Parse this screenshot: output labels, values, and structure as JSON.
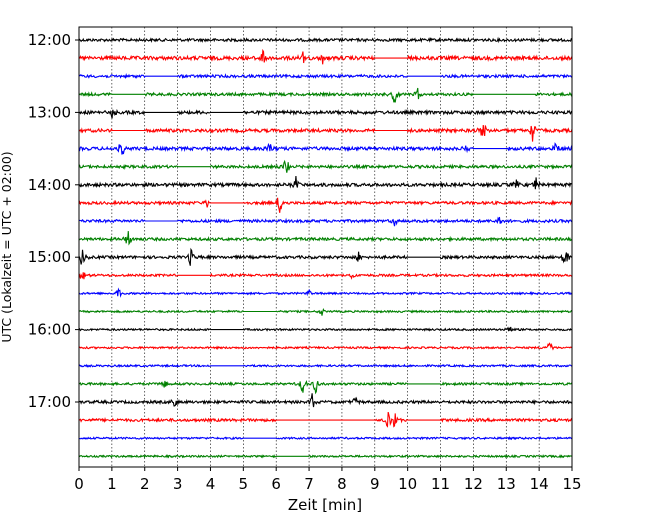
{
  "chart_data": {
    "type": "line",
    "title": "",
    "xlabel": "Zeit  [min]",
    "ylabel": "UTC (Lokalzeit = UTC + 02:00)",
    "xlim": [
      0,
      15
    ],
    "x_ticks": [
      "0",
      "1",
      "2",
      "3",
      "4",
      "5",
      "6",
      "7",
      "8",
      "9",
      "10",
      "11",
      "12",
      "13",
      "14",
      "15"
    ],
    "y_tick_labels": [
      "12:00",
      "13:00",
      "14:00",
      "15:00",
      "16:00",
      "17:00"
    ],
    "trace_interval_min": 15,
    "trace_start": "12:00",
    "trace_colors": [
      "#000000",
      "#ff0000",
      "#0000ff",
      "#008000"
    ],
    "grid_x": true,
    "traces": [
      {
        "start": "12:00",
        "color": "#000000",
        "noise": 0.3,
        "gaps": [],
        "events": []
      },
      {
        "start": "12:15",
        "color": "#ff0000",
        "noise": 0.4,
        "gaps": [
          [
            9.0,
            10.0
          ]
        ],
        "events": [
          [
            5.6,
            0.8
          ],
          [
            6.8,
            0.8
          ],
          [
            7.4,
            0.7
          ]
        ]
      },
      {
        "start": "12:30",
        "color": "#0000ff",
        "noise": 0.3,
        "gaps": [
          [
            2.0,
            3.0
          ],
          [
            10.0,
            11.0
          ]
        ],
        "events": []
      },
      {
        "start": "12:45",
        "color": "#008000",
        "noise": 0.3,
        "gaps": [
          [
            1.0,
            2.0
          ],
          [
            12.0,
            13.9
          ]
        ],
        "events": [
          [
            9.6,
            1.0
          ],
          [
            10.3,
            0.7
          ]
        ]
      },
      {
        "start": "13:00",
        "color": "#000000",
        "noise": 0.35,
        "gaps": [
          [
            2.0,
            3.0
          ],
          [
            4.0,
            5.0
          ]
        ],
        "events": [
          [
            1.0,
            0.6
          ]
        ]
      },
      {
        "start": "13:15",
        "color": "#ff0000",
        "noise": 0.35,
        "gaps": [
          [
            1.0,
            2.0
          ],
          [
            9.0,
            10.0
          ]
        ],
        "events": [
          [
            12.3,
            1.4
          ],
          [
            13.8,
            1.1
          ]
        ]
      },
      {
        "start": "13:30",
        "color": "#0000ff",
        "noise": 0.35,
        "gaps": [
          [
            12.0,
            13.0
          ]
        ],
        "events": [
          [
            1.3,
            0.9
          ],
          [
            5.8,
            0.7
          ],
          [
            11.8,
            0.7
          ],
          [
            14.5,
            0.6
          ]
        ]
      },
      {
        "start": "13:45",
        "color": "#008000",
        "noise": 0.3,
        "gaps": [
          [
            3.0,
            4.0
          ]
        ],
        "events": [
          [
            6.3,
            1.3
          ]
        ]
      },
      {
        "start": "14:00",
        "color": "#000000",
        "noise": 0.35,
        "gaps": [],
        "events": [
          [
            6.6,
            1.0
          ],
          [
            13.3,
            0.7
          ],
          [
            13.9,
            0.9
          ]
        ]
      },
      {
        "start": "14:15",
        "color": "#ff0000",
        "noise": 0.3,
        "gaps": [
          [
            4.0,
            5.0
          ]
        ],
        "events": [
          [
            6.1,
            1.1
          ],
          [
            3.9,
            0.5
          ]
        ]
      },
      {
        "start": "14:30",
        "color": "#0000ff",
        "noise": 0.3,
        "gaps": [
          [
            2.0,
            3.0
          ]
        ],
        "events": [
          [
            9.6,
            0.6
          ],
          [
            12.8,
            0.8
          ]
        ]
      },
      {
        "start": "14:45",
        "color": "#008000",
        "noise": 0.3,
        "gaps": [],
        "events": [
          [
            1.5,
            1.1
          ]
        ]
      },
      {
        "start": "15:00",
        "color": "#000000",
        "noise": 0.3,
        "gaps": [
          [
            10.0,
            11.0
          ]
        ],
        "events": [
          [
            0.1,
            1.0
          ],
          [
            3.4,
            1.0
          ],
          [
            14.8,
            1.2
          ],
          [
            8.5,
            0.5
          ]
        ]
      },
      {
        "start": "15:15",
        "color": "#ff0000",
        "noise": 0.25,
        "gaps": [
          [
            3.0,
            4.0
          ]
        ],
        "events": [
          [
            0.1,
            0.7
          ],
          [
            8.3,
            0.5
          ]
        ]
      },
      {
        "start": "15:30",
        "color": "#0000ff",
        "noise": 0.2,
        "gaps": [],
        "events": [
          [
            1.2,
            0.5
          ],
          [
            7.0,
            0.5
          ]
        ]
      },
      {
        "start": "15:45",
        "color": "#008000",
        "noise": 0.2,
        "gaps": [
          [
            5.0,
            6.0
          ]
        ],
        "events": [
          [
            7.4,
            0.5
          ]
        ]
      },
      {
        "start": "16:00",
        "color": "#000000",
        "noise": 0.2,
        "gaps": [
          [
            4.0,
            5.0
          ]
        ],
        "events": [
          [
            13.1,
            0.5
          ]
        ]
      },
      {
        "start": "16:15",
        "color": "#ff0000",
        "noise": 0.2,
        "gaps": [],
        "events": [
          [
            14.3,
            1.0
          ]
        ]
      },
      {
        "start": "16:30",
        "color": "#0000ff",
        "noise": 0.2,
        "gaps": [
          [
            4.0,
            5.0
          ]
        ],
        "events": []
      },
      {
        "start": "16:45",
        "color": "#008000",
        "noise": 0.25,
        "gaps": [
          [
            10.0,
            11.0
          ]
        ],
        "events": [
          [
            6.8,
            1.0
          ],
          [
            7.2,
            1.1
          ],
          [
            2.6,
            0.5
          ]
        ]
      },
      {
        "start": "17:00",
        "color": "#000000",
        "noise": 0.3,
        "gaps": [],
        "events": [
          [
            2.9,
            0.8
          ],
          [
            7.1,
            0.9
          ],
          [
            8.4,
            0.5
          ]
        ]
      },
      {
        "start": "17:15",
        "color": "#ff0000",
        "noise": 0.3,
        "gaps": [
          [
            6.0,
            9.0
          ],
          [
            10.0,
            11.0
          ]
        ],
        "events": [
          [
            9.4,
            1.1
          ],
          [
            9.6,
            0.9
          ],
          [
            8.9,
            0.6
          ]
        ]
      },
      {
        "start": "17:30",
        "color": "#0000ff",
        "noise": 0.2,
        "gaps": [
          [
            5.0,
            6.0
          ]
        ],
        "events": []
      },
      {
        "start": "17:45",
        "color": "#008000",
        "noise": 0.2,
        "gaps": [
          [
            6.0,
            7.0
          ]
        ],
        "events": []
      }
    ]
  }
}
